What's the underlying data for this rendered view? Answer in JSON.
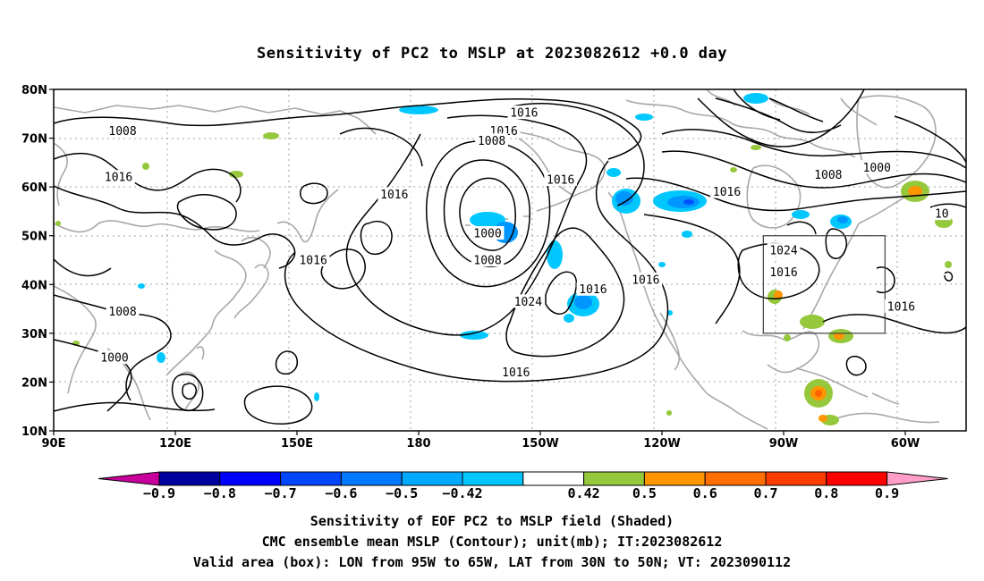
{
  "title": "Sensitivity of PC2 to MSLP at 2023082612 +0.0 day",
  "map": {
    "lat_labels": [
      "80N",
      "70N",
      "60N",
      "50N",
      "40N",
      "30N",
      "20N",
      "10N"
    ],
    "lon_labels": [
      "90E",
      "120E",
      "150E",
      "180",
      "150W",
      "120W",
      "90W",
      "60W"
    ],
    "contour_labels": [
      {
        "text": "1016",
        "lon": -154,
        "lat": 75.2
      },
      {
        "text": "1016",
        "lon": -159,
        "lat": 71.5
      },
      {
        "text": "1008",
        "lon": -162,
        "lat": 69.5
      },
      {
        "text": "1016",
        "lon": -145,
        "lat": 61.5
      },
      {
        "text": "1016",
        "lon": 174,
        "lat": 58.5
      },
      {
        "text": "1000",
        "lon": -163,
        "lat": 50.5
      },
      {
        "text": "1008",
        "lon": -163,
        "lat": 45.0
      },
      {
        "text": "1016",
        "lon": 154,
        "lat": 45.0
      },
      {
        "text": "1024",
        "lon": -153,
        "lat": 36.5
      },
      {
        "text": "1016",
        "lon": -137,
        "lat": 39.0
      },
      {
        "text": "1016",
        "lon": -124,
        "lat": 41.0
      },
      {
        "text": "1016",
        "lon": -156,
        "lat": 22.0
      },
      {
        "text": "1008",
        "lon": 107,
        "lat": 71.5
      },
      {
        "text": "1016",
        "lon": 106,
        "lat": 62.0
      },
      {
        "text": "1008",
        "lon": 107,
        "lat": 34.5
      },
      {
        "text": "1000",
        "lon": 105,
        "lat": 25.0
      },
      {
        "text": "1016",
        "lon": -104,
        "lat": 59.0
      },
      {
        "text": "1008",
        "lon": -79,
        "lat": 62.5
      },
      {
        "text": "1000",
        "lon": -67,
        "lat": 64.0
      },
      {
        "text": "1024",
        "lon": -90,
        "lat": 47.0
      },
      {
        "text": "1016",
        "lon": -90,
        "lat": 42.5
      },
      {
        "text": "1016",
        "lon": -61,
        "lat": 35.5
      },
      {
        "text": "10",
        "lon": -51,
        "lat": 54.5
      }
    ],
    "valid_box": {
      "lon_min": -95,
      "lon_max": -65,
      "lat_min": 30,
      "lat_max": 50
    },
    "shading_colors": {
      "neg_0.5": "#00c8ff",
      "neg_0.6": "#0096ff",
      "neg_0.7": "#0050ff",
      "pos_0.5": "#96c83c",
      "pos_0.6": "#ff9600",
      "pos_0.7": "#ff6400"
    }
  },
  "colorbar": {
    "labels": [
      "-0.9",
      "-0.8",
      "-0.7",
      "-0.6",
      "-0.5",
      "-0.42",
      "0.42",
      "0.5",
      "0.6",
      "0.7",
      "0.8",
      "0.9"
    ],
    "colors": [
      "#0000a0",
      "#0000ff",
      "#0046ff",
      "#0078ff",
      "#00aaff",
      "#00c8ff",
      "#ffffff",
      "#96c83c",
      "#ff9600",
      "#ff6e00",
      "#ff3c00",
      "#ff0000"
    ],
    "low_extend_color": "#c8009b",
    "high_extend_color": "#ff9ec8"
  },
  "captions": [
    "Sensitivity of EOF PC2 to MSLP field (Shaded)",
    "CMC ensemble mean MSLP (Contour); unit(mb); IT:2023082612",
    "Valid area (box): LON from 95W to 65W, LAT from 30N to 50N; VT: 2023090112"
  ]
}
